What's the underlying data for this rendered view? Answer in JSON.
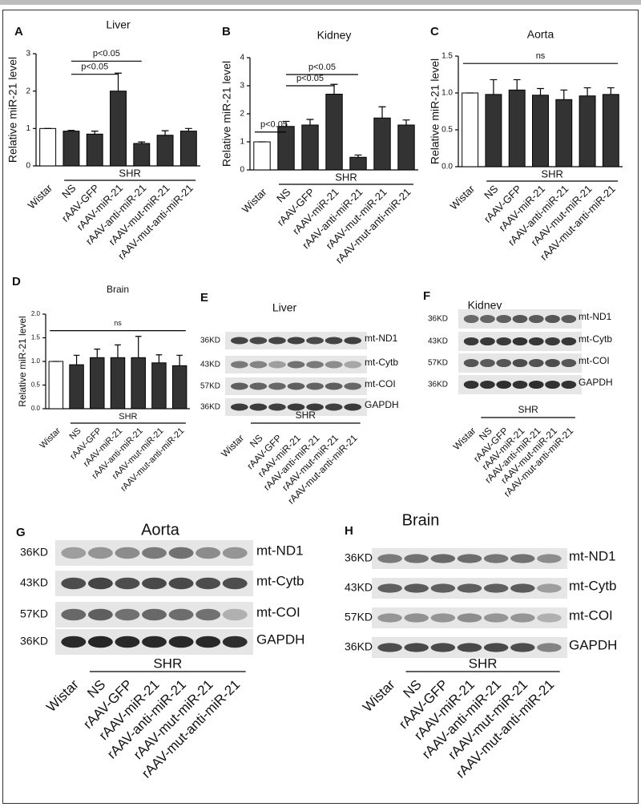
{
  "chart_data": [
    {
      "type": "bar",
      "panel": "A",
      "title": "Liver",
      "y_label": "Relative miR-21 level",
      "group_label": "SHR",
      "categories": [
        "Wistar",
        "NS",
        "rAAV-GFP",
        "rAAV-miR-21",
        "rAAV-anti-miR-21",
        "rAAV-mut-miR-21",
        "rAAV-mut-anti-miR-21"
      ],
      "values": [
        1,
        0.93,
        0.85,
        2.0,
        0.6,
        0.82,
        0.93
      ],
      "errors": [
        0,
        0.02,
        0.08,
        0.48,
        0.04,
        0.12,
        0.07
      ],
      "colors": [
        "#ffffff",
        "#333333",
        "#333333",
        "#333333",
        "#333333",
        "#333333",
        "#333333"
      ],
      "ylim": [
        0,
        3
      ],
      "yticks": [
        0,
        1,
        2,
        3
      ],
      "annotations": [
        "p<0.05",
        "p<0.05"
      ]
    },
    {
      "type": "bar",
      "panel": "B",
      "title": "Kidney",
      "y_label": "Relative miR-21 level",
      "group_label": "SHR",
      "categories": [
        "Wistar",
        "NS",
        "rAAV-GFP",
        "rAAV-miR-21",
        "rAAV-anti-miR-21",
        "rAAV-mut-miR-21",
        "rAAV-mut-anti-miR-21"
      ],
      "values": [
        1,
        1.55,
        1.6,
        2.7,
        0.45,
        1.85,
        1.6
      ],
      "errors": [
        0,
        0.18,
        0.2,
        0.35,
        0.08,
        0.4,
        0.18
      ],
      "colors": [
        "#ffffff",
        "#333333",
        "#333333",
        "#333333",
        "#333333",
        "#333333",
        "#333333"
      ],
      "ylim": [
        0,
        4
      ],
      "yticks": [
        0,
        1,
        2,
        3,
        4
      ],
      "annotations": [
        "p<0.05",
        "p<0.05",
        "p<0.05"
      ]
    },
    {
      "type": "bar",
      "panel": "C",
      "title": "Aorta",
      "y_label": "Relative miR-21 level",
      "group_label": "SHR",
      "categories": [
        "Wistar",
        "NS",
        "rAAV-GFP",
        "rAAV-miR-21",
        "rAAV-anti-miR-21",
        "rAAV-mut-miR-21",
        "rAAV-mut-anti-miR-21"
      ],
      "values": [
        1,
        0.98,
        1.04,
        0.97,
        0.91,
        0.96,
        0.98
      ],
      "errors": [
        0,
        0.2,
        0.14,
        0.09,
        0.13,
        0.11,
        0.09
      ],
      "colors": [
        "#ffffff",
        "#333333",
        "#333333",
        "#333333",
        "#333333",
        "#333333",
        "#333333"
      ],
      "ylim": [
        0,
        1.5
      ],
      "yticks": [
        {
          "value": 0,
          "label": "0.0"
        },
        {
          "value": 0.5,
          "label": "0.5"
        },
        {
          "value": 1,
          "label": "1.0"
        },
        {
          "value": 1.5,
          "label": "1.5"
        }
      ],
      "annotations": [
        "ns"
      ]
    },
    {
      "type": "bar",
      "panel": "D",
      "title": "Brain",
      "y_label": "Relative miR-21 level",
      "group_label": "SHR",
      "categories": [
        "Wistar",
        "NS",
        "rAAV-GFP",
        "rAAV-miR-21",
        "rAAV-anti-miR-21",
        "rAAV-mut-miR-21",
        "rAAV-mut-anti-miR-21"
      ],
      "values": [
        1,
        0.93,
        1.08,
        1.08,
        1.08,
        0.97,
        0.91
      ],
      "errors": [
        0,
        0.2,
        0.18,
        0.27,
        0.45,
        0.17,
        0.22
      ],
      "colors": [
        "#ffffff",
        "#333333",
        "#333333",
        "#333333",
        "#333333",
        "#333333",
        "#333333"
      ],
      "ylim": [
        0,
        2
      ],
      "yticks": [
        {
          "value": 0,
          "label": "0.0"
        },
        {
          "value": 0.5,
          "label": "0.5"
        },
        {
          "value": 1,
          "label": "1.0"
        },
        {
          "value": 1.5,
          "label": "1.5"
        },
        {
          "value": 2,
          "label": "2.0"
        }
      ],
      "annotations": [
        "ns"
      ]
    }
  ],
  "blots": [
    {
      "panel": "E",
      "title": "Liver",
      "markers": [
        "36KD",
        "43KD",
        "57KD",
        "36KD"
      ],
      "proteins": [
        "mt-ND1",
        "mt-Cytb",
        "mt-COI",
        "GAPDH"
      ],
      "group_label": "SHR",
      "lanes": [
        "Wistar",
        "NS",
        "rAAV-GFP",
        "rAAV-miR-21",
        "rAAV-anti-miR-21",
        "rAAV-mut-miR-21",
        "rAAV-mut-anti-miR-21"
      ]
    },
    {
      "panel": "F",
      "title": "Kidney",
      "markers": [
        "36KD",
        "43KD",
        "57KD",
        "36KD"
      ],
      "proteins": [
        "mt-ND1",
        "mt-Cytb",
        "mt-COI",
        "GAPDH"
      ],
      "group_label": "SHR",
      "lanes": [
        "Wistar",
        "NS",
        "rAAV-GFP",
        "rAAV-miR-21",
        "rAAV-anti-miR-21",
        "rAAV-mut-miR-21",
        "rAAV-mut-anti-miR-21"
      ]
    },
    {
      "panel": "G",
      "title": "Aorta",
      "markers": [
        "36KD",
        "43KD",
        "57KD",
        "36KD"
      ],
      "proteins": [
        "mt-ND1",
        "mt-Cytb",
        "mt-COI",
        "GAPDH"
      ],
      "group_label": "SHR",
      "lanes": [
        "Wistar",
        "NS",
        "rAAV-GFP",
        "rAAV-miR-21",
        "rAAV-anti-miR-21",
        "rAAV-mut-miR-21",
        "rAAV-mut-anti-miR-21"
      ]
    },
    {
      "panel": "H",
      "title": "Brain",
      "markers": [
        "36KD",
        "43KD",
        "57KD",
        "36KD"
      ],
      "proteins": [
        "mt-ND1",
        "mt-Cytb",
        "mt-COI",
        "GAPDH"
      ],
      "group_label": "SHR",
      "lanes": [
        "Wistar",
        "NS",
        "rAAV-GFP",
        "rAAV-miR-21",
        "rAAV-anti-miR-21",
        "rAAV-mut-miR-21",
        "rAAV-mut-anti-miR-21"
      ]
    }
  ]
}
